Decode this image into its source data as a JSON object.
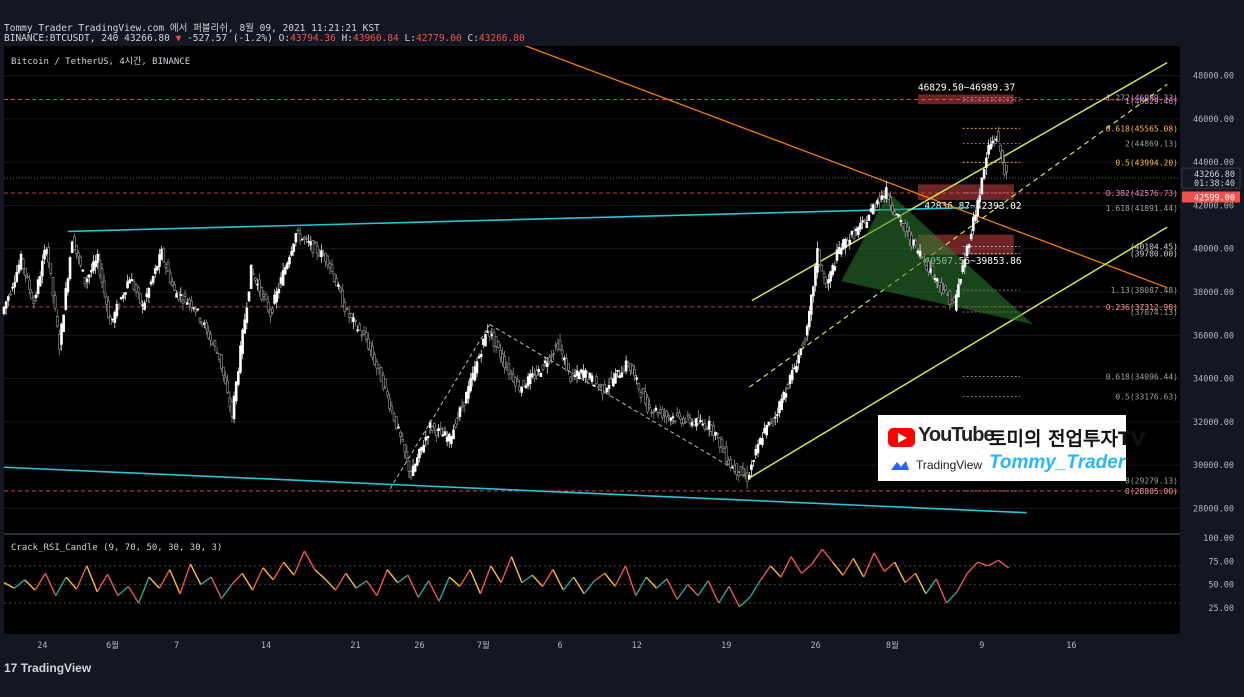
{
  "header": {
    "publish_line": "Tommy_Trader TradingView.com 에서 퍼블리쉬, 8월 09, 2021 11:21:21 KST",
    "ticker": "BINANCE:BTCUSDT, 240 43266.80",
    "change_arrow": "▼",
    "change": "-527.57 (-1.2%)",
    "o_label": "O:",
    "o": "43794.36",
    "h_label": "H:",
    "h": "43960.84",
    "l_label": "L:",
    "l": "42779.00",
    "c_label": "C:",
    "c": "43266.80"
  },
  "chart_title": "Bitcoin / TetherUS, 4시간, BINANCE",
  "footer": {
    "logo_text": "TradingView"
  },
  "watermark": {
    "youtube": "YouTube",
    "channel": "토미의 전업투자TV",
    "tradingview": "TradingView",
    "trader": "Tommy_Trader"
  },
  "chart_data": [
    {
      "type": "candlestick",
      "title": "Bitcoin / TetherUS, 4시간, BINANCE",
      "ylim": [
        27000,
        49000
      ],
      "y_ticks": [
        28000,
        30000,
        32000,
        34000,
        36000,
        38000,
        40000,
        42000,
        44000,
        46000,
        48000
      ],
      "y_tick_labels": [
        "28000.00",
        "30000.00",
        "32000.00",
        "34000.00",
        "36000.00",
        "38000.00",
        "40000.00",
        "42000.00",
        "44000.00",
        "46000.00",
        "48000.00"
      ],
      "x_tick_labels": [
        "24",
        "6월",
        "7",
        "14",
        "21",
        "26",
        "7월",
        "6",
        "12",
        "19",
        "26",
        "8월",
        "9",
        "16"
      ],
      "x_ticks": [
        3,
        8.5,
        13.5,
        20.5,
        27.5,
        32.5,
        37.5,
        43.5,
        49.5,
        56.5,
        63.5,
        69.5,
        76.5,
        83.5
      ],
      "x_range": [
        0,
        92
      ],
      "path": [
        [
          0,
          37000
        ],
        [
          1.5,
          39500
        ],
        [
          2.5,
          37500
        ],
        [
          3.5,
          40200
        ],
        [
          4.5,
          35500
        ],
        [
          5.5,
          40500
        ],
        [
          6.5,
          38500
        ],
        [
          7.5,
          39500
        ],
        [
          8.5,
          36500
        ],
        [
          10,
          38700
        ],
        [
          11,
          37300
        ],
        [
          12.5,
          39800
        ],
        [
          13.5,
          38000
        ],
        [
          15,
          37400
        ],
        [
          17,
          35000
        ],
        [
          18,
          32300
        ],
        [
          19.5,
          39000
        ],
        [
          21,
          37000
        ],
        [
          23,
          40700
        ],
        [
          25.5,
          39500
        ],
        [
          27,
          37000
        ],
        [
          28.5,
          35800
        ],
        [
          30,
          33500
        ],
        [
          31.2,
          31200
        ],
        [
          32,
          29500
        ],
        [
          33.5,
          31800
        ],
        [
          35,
          31200
        ],
        [
          36.5,
          33500
        ],
        [
          38,
          36300
        ],
        [
          39.5,
          34500
        ],
        [
          40.5,
          33600
        ],
        [
          42,
          34300
        ],
        [
          43.5,
          35600
        ],
        [
          44.5,
          34000
        ],
        [
          45.5,
          34300
        ],
        [
          47,
          33500
        ],
        [
          49,
          34700
        ],
        [
          50.5,
          32700
        ],
        [
          52,
          32300
        ],
        [
          54,
          32000
        ],
        [
          55.5,
          31800
        ],
        [
          57,
          30000
        ],
        [
          58.3,
          29400
        ],
        [
          59.5,
          31400
        ],
        [
          60.5,
          32300
        ],
        [
          62,
          34500
        ],
        [
          63,
          36200
        ],
        [
          63.8,
          39800
        ],
        [
          64.5,
          38200
        ],
        [
          65.5,
          40000
        ],
        [
          66.5,
          40600
        ],
        [
          67.5,
          41200
        ],
        [
          68.5,
          42300
        ],
        [
          69.2,
          42600
        ],
        [
          70,
          41500
        ],
        [
          71,
          40500
        ],
        [
          72,
          39600
        ],
        [
          73.5,
          38200
        ],
        [
          74.5,
          37400
        ],
        [
          75.5,
          40000
        ],
        [
          76.5,
          42600
        ],
        [
          77.2,
          44700
        ],
        [
          77.8,
          45200
        ],
        [
          78.6,
          43300
        ]
      ],
      "value_labels": [
        {
          "text": "43266.80",
          "sub": "01:38:40",
          "y": 43266.8,
          "color": "#d1d4dc"
        },
        {
          "text": "42599.00",
          "y": 42599,
          "color": "#ef5350"
        }
      ],
      "fib_levels": [
        {
          "label": "1.272(46989.33)",
          "y": 46989.33,
          "color": "#ce93d8"
        },
        {
          "label": "1(46829.46)",
          "y": 46829.46,
          "color": "#ce93d8"
        },
        {
          "label": "0.618(45565.08)",
          "y": 45565.08,
          "color": "#ffb74d"
        },
        {
          "label": "2(44869.13)",
          "y": 44869.13,
          "color": "#9e9e9e"
        },
        {
          "label": "0.5(43994.20)",
          "y": 43994.2,
          "color": "#ffb74d"
        },
        {
          "label": "0.382(42576.73)",
          "y": 42576.73,
          "color": "#ce93d8"
        },
        {
          "label": "1.618(41891.44)",
          "y": 41891.44,
          "color": "#9e9e9e"
        },
        {
          "label": "(40104.45)",
          "y": 40104.45,
          "color": "#d1d4dc"
        },
        {
          "label": "(39780.00)",
          "y": 39780,
          "color": "#d1d4dc"
        },
        {
          "label": "1.13(38087.48)",
          "y": 38087.48,
          "color": "#9e9e9e"
        },
        {
          "label": "0.236(37312.98)",
          "y": 37312.98,
          "color": "#ef9a9a"
        },
        {
          "label": "(37074.13)",
          "y": 37074.13,
          "color": "#9e9e9e"
        },
        {
          "label": "0.618(34096.44)",
          "y": 34096.44,
          "color": "#9e9e9e"
        },
        {
          "label": "0.5(33176.63)",
          "y": 33176.63,
          "color": "#9e9e9e"
        },
        {
          "label": "0(29279.13)",
          "y": 29279.13,
          "color": "#9e9e9e"
        },
        {
          "label": "0(28805.00)",
          "y": 28805,
          "color": "#ef9a9a"
        }
      ],
      "zones": [
        {
          "label": "46829.50~46989.37",
          "y_low": 46829.5,
          "y_high": 46989.37
        },
        {
          "label": "42836.87~42393.02",
          "y_low": 42393.02,
          "y_high": 42836.87
        },
        {
          "label": "40507.56~39853.86",
          "y_low": 39853.86,
          "y_high": 40507.56
        }
      ]
    },
    {
      "type": "line",
      "title": "Crack_RSI_Candle (9, 70, 50, 30, 30, 3)",
      "ylim": [
        0,
        100
      ],
      "y_ticks": [
        25,
        50,
        75,
        100
      ],
      "y_tick_labels": [
        "25.00",
        "50.00",
        "75.00",
        "100.00"
      ],
      "levels": [
        70,
        50,
        30
      ],
      "series": [
        {
          "values": [
            52,
            46,
            55,
            44,
            62,
            38,
            58,
            45,
            70,
            42,
            61,
            38,
            48,
            30,
            58,
            46,
            66,
            40,
            72,
            50,
            58,
            35,
            50,
            62,
            44,
            68,
            55,
            74,
            60,
            86,
            66,
            56,
            44,
            62,
            46,
            54,
            38,
            66,
            52,
            60,
            36,
            54,
            32,
            58,
            48,
            66,
            40,
            70,
            52,
            80,
            52,
            60,
            48,
            66,
            44,
            58,
            40,
            54,
            62,
            48,
            70,
            38,
            58,
            46,
            56,
            34,
            50,
            38,
            54,
            30,
            48,
            26,
            36,
            54,
            70,
            58,
            80,
            62,
            72,
            88,
            74,
            60,
            78,
            58,
            84,
            64,
            74,
            52,
            62,
            40,
            56,
            30,
            42,
            62,
            74,
            70,
            76,
            68
          ]
        }
      ]
    }
  ]
}
